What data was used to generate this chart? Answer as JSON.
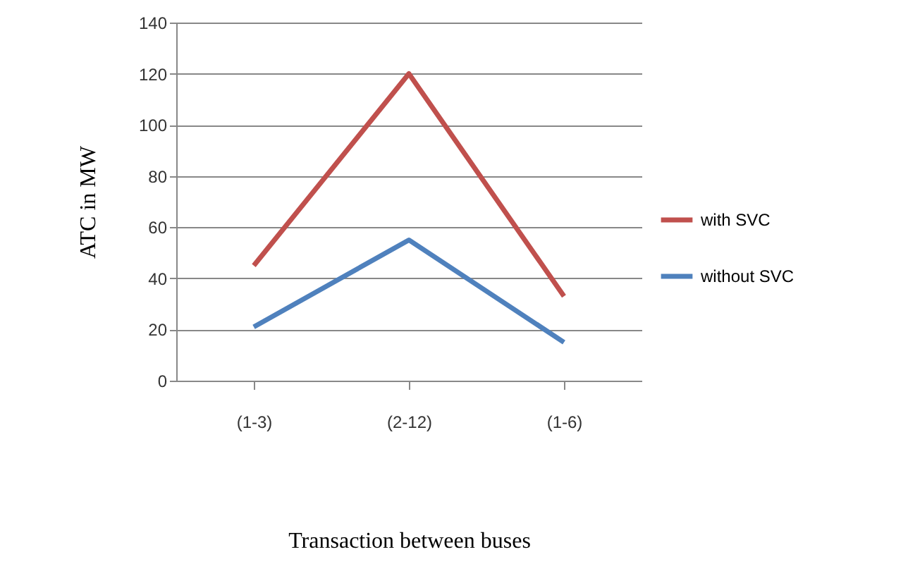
{
  "chart_data": {
    "type": "line",
    "xlabel": "Transaction between buses",
    "ylabel": "ATC in MW",
    "categories": [
      "(1-3)",
      "(2-12)",
      "(1-6)"
    ],
    "series": [
      {
        "name": "with SVC",
        "color": "#c0504d",
        "values": [
          45,
          120,
          33
        ]
      },
      {
        "name": "without SVC",
        "color": "#4f81bd",
        "values": [
          21,
          55,
          15
        ]
      }
    ],
    "ylim": [
      0,
      140
    ],
    "yticks": [
      0,
      20,
      40,
      60,
      80,
      100,
      120,
      140
    ],
    "grid": "y",
    "legend": "right",
    "marker": "none",
    "line_style": "solid"
  }
}
